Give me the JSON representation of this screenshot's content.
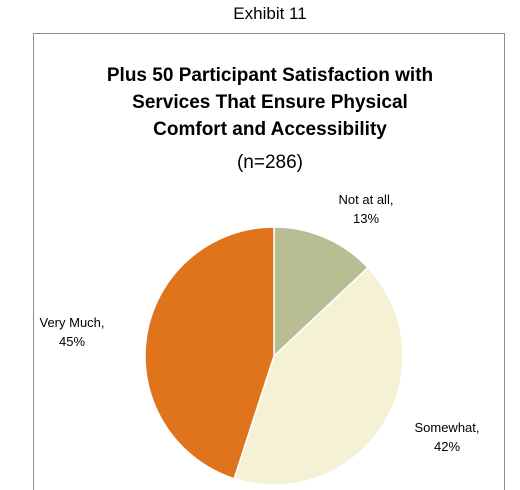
{
  "exhibit_label": "Exhibit 11",
  "chart_data": {
    "type": "pie",
    "title_lines": [
      "Plus 50 Participant Satisfaction with",
      "Services That Ensure Physical",
      "Comfort and Accessibility"
    ],
    "subtitle": "(n=286)",
    "slices": [
      {
        "label": "Not at all,",
        "value": 13,
        "value_label": "13%",
        "color": "#b8bd94"
      },
      {
        "label": "Somewhat,",
        "value": 42,
        "value_label": "42%",
        "color": "#f5f1d4"
      },
      {
        "label": "Very Much,",
        "value": 45,
        "value_label": "45%",
        "color": "#e0741d"
      }
    ]
  }
}
